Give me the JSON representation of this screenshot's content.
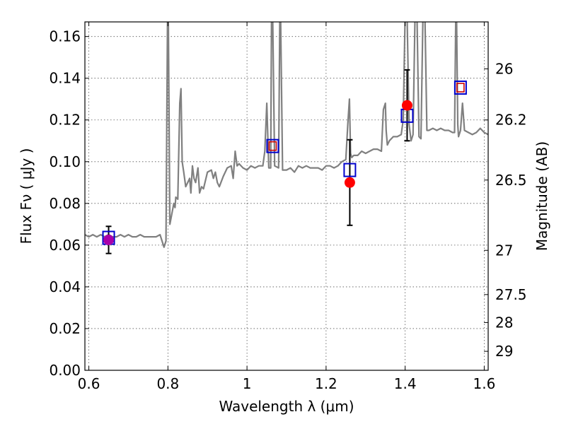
{
  "chart_data": {
    "type": "scatter",
    "xlabel": "Wavelength  λ (μm)",
    "ylabel": "Flux  Fν ( μJy )",
    "ylabel_right": "Magnitude (AB)",
    "xlim": [
      0.59,
      1.61
    ],
    "ylim": [
      0.0,
      0.167
    ],
    "grid": true,
    "x_ticks": [
      {
        "value": 0.6,
        "label": "0.6"
      },
      {
        "value": 0.8,
        "label": "0.8"
      },
      {
        "value": 1.0,
        "label": "1"
      },
      {
        "value": 1.2,
        "label": "1.2"
      },
      {
        "value": 1.4,
        "label": "1.4"
      },
      {
        "value": 1.6,
        "label": "1.6"
      }
    ],
    "y_ticks": [
      {
        "value": 0.0,
        "label": "0.00"
      },
      {
        "value": 0.02,
        "label": "0.02"
      },
      {
        "value": 0.04,
        "label": "0.04"
      },
      {
        "value": 0.06,
        "label": "0.06"
      },
      {
        "value": 0.08,
        "label": "0.08"
      },
      {
        "value": 0.1,
        "label": "0.10"
      },
      {
        "value": 0.12,
        "label": "0.12"
      },
      {
        "value": 0.14,
        "label": "0.14"
      },
      {
        "value": 0.16,
        "label": "0.16"
      }
    ],
    "right_ticks": [
      {
        "flux": 0.1445,
        "label": "26"
      },
      {
        "flux": 0.12,
        "label": "26.2"
      },
      {
        "flux": 0.0912,
        "label": "26.5"
      },
      {
        "flux": 0.0575,
        "label": "27"
      },
      {
        "flux": 0.0363,
        "label": "27.5"
      },
      {
        "flux": 0.0229,
        "label": "28"
      },
      {
        "flux": 0.0091,
        "label": "29"
      }
    ],
    "model_spectrum": {
      "color": "#808080",
      "x": [
        0.59,
        0.6,
        0.61,
        0.62,
        0.63,
        0.64,
        0.65,
        0.66,
        0.67,
        0.68,
        0.69,
        0.7,
        0.71,
        0.72,
        0.73,
        0.74,
        0.75,
        0.76,
        0.77,
        0.78,
        0.79,
        0.795,
        0.799,
        0.801,
        0.805,
        0.81,
        0.815,
        0.818,
        0.82,
        0.825,
        0.83,
        0.833,
        0.836,
        0.84,
        0.845,
        0.85,
        0.855,
        0.858,
        0.862,
        0.866,
        0.87,
        0.876,
        0.88,
        0.885,
        0.89,
        0.9,
        0.91,
        0.915,
        0.92,
        0.925,
        0.93,
        0.94,
        0.95,
        0.96,
        0.965,
        0.97,
        0.975,
        0.98,
        0.99,
        1.0,
        1.01,
        1.02,
        1.03,
        1.04,
        1.045,
        1.05,
        1.055,
        1.06,
        1.062,
        1.065,
        1.07,
        1.08,
        1.083,
        1.085,
        1.09,
        1.1,
        1.11,
        1.12,
        1.13,
        1.14,
        1.15,
        1.16,
        1.17,
        1.18,
        1.19,
        1.2,
        1.21,
        1.22,
        1.23,
        1.24,
        1.25,
        1.255,
        1.259,
        1.262,
        1.265,
        1.27,
        1.28,
        1.29,
        1.3,
        1.31,
        1.32,
        1.33,
        1.34,
        1.345,
        1.35,
        1.352,
        1.355,
        1.36,
        1.37,
        1.38,
        1.39,
        1.395,
        1.4,
        1.405,
        1.41,
        1.415,
        1.42,
        1.425,
        1.43,
        1.435,
        1.44,
        1.445,
        1.45,
        1.455,
        1.46,
        1.47,
        1.48,
        1.49,
        1.5,
        1.51,
        1.52,
        1.525,
        1.528,
        1.53,
        1.533,
        1.535,
        1.54,
        1.545,
        1.55,
        1.56,
        1.57,
        1.58,
        1.59,
        1.6,
        1.61
      ],
      "y": [
        0.065,
        0.064,
        0.065,
        0.064,
        0.065,
        0.064,
        0.065,
        0.064,
        0.064,
        0.065,
        0.064,
        0.065,
        0.064,
        0.064,
        0.065,
        0.064,
        0.064,
        0.064,
        0.064,
        0.065,
        0.059,
        0.062,
        0.17,
        0.17,
        0.07,
        0.075,
        0.08,
        0.078,
        0.083,
        0.082,
        0.128,
        0.135,
        0.1,
        0.095,
        0.088,
        0.09,
        0.092,
        0.085,
        0.098,
        0.092,
        0.09,
        0.097,
        0.085,
        0.088,
        0.087,
        0.095,
        0.096,
        0.092,
        0.095,
        0.09,
        0.088,
        0.093,
        0.097,
        0.098,
        0.092,
        0.105,
        0.098,
        0.099,
        0.097,
        0.096,
        0.098,
        0.097,
        0.098,
        0.098,
        0.105,
        0.128,
        0.097,
        0.097,
        0.17,
        0.17,
        0.098,
        0.097,
        0.17,
        0.17,
        0.096,
        0.096,
        0.097,
        0.095,
        0.098,
        0.097,
        0.098,
        0.097,
        0.097,
        0.097,
        0.096,
        0.098,
        0.098,
        0.097,
        0.098,
        0.1,
        0.101,
        0.118,
        0.13,
        0.104,
        0.102,
        0.103,
        0.103,
        0.105,
        0.104,
        0.105,
        0.106,
        0.106,
        0.105,
        0.125,
        0.128,
        0.115,
        0.108,
        0.11,
        0.112,
        0.112,
        0.113,
        0.12,
        0.17,
        0.17,
        0.118,
        0.11,
        0.113,
        0.17,
        0.17,
        0.112,
        0.111,
        0.17,
        0.17,
        0.115,
        0.115,
        0.116,
        0.115,
        0.116,
        0.115,
        0.115,
        0.114,
        0.114,
        0.17,
        0.17,
        0.118,
        0.112,
        0.115,
        0.128,
        0.115,
        0.114,
        0.113,
        0.114,
        0.116,
        0.114,
        0.113
      ]
    },
    "model_points": {
      "color": "#0000cc",
      "x": [
        0.65,
        1.065,
        1.26,
        1.405,
        1.54
      ],
      "y": [
        0.0635,
        0.1075,
        0.096,
        0.122,
        0.1355
      ]
    },
    "model_points_inner": {
      "color": "#cc0000",
      "x": [
        1.065,
        1.54
      ],
      "y": [
        0.1075,
        0.1355
      ]
    },
    "observations": {
      "color": "#ff0000",
      "x": [
        0.65,
        1.26,
        1.405
      ],
      "y": [
        0.0625,
        0.09,
        0.127
      ],
      "err_low": [
        0.0065,
        0.0205,
        0.017
      ],
      "err_high": [
        0.0065,
        0.0205,
        0.017
      ],
      "overlap_color": "#aa00aa"
    }
  }
}
